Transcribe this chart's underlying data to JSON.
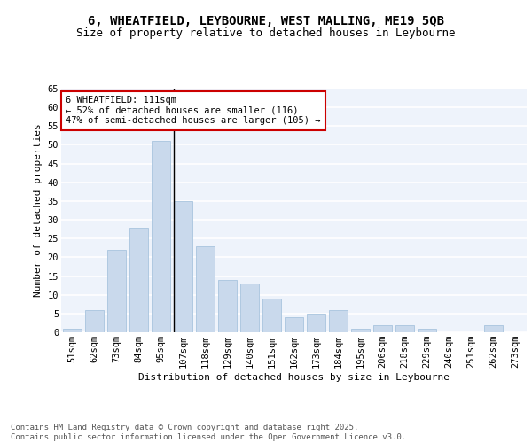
{
  "title1": "6, WHEATFIELD, LEYBOURNE, WEST MALLING, ME19 5QB",
  "title2": "Size of property relative to detached houses in Leybourne",
  "xlabel": "Distribution of detached houses by size in Leybourne",
  "ylabel": "Number of detached properties",
  "categories": [
    "51sqm",
    "62sqm",
    "73sqm",
    "84sqm",
    "95sqm",
    "107sqm",
    "118sqm",
    "129sqm",
    "140sqm",
    "151sqm",
    "162sqm",
    "173sqm",
    "184sqm",
    "195sqm",
    "206sqm",
    "218sqm",
    "229sqm",
    "240sqm",
    "251sqm",
    "262sqm",
    "273sqm"
  ],
  "values": [
    1,
    6,
    22,
    28,
    51,
    35,
    23,
    14,
    13,
    9,
    4,
    5,
    6,
    1,
    2,
    2,
    1,
    0,
    0,
    2,
    0
  ],
  "bar_color": "#c9d9ec",
  "bar_edge_color": "#a8c4de",
  "highlight_index": 5,
  "highlight_line_color": "#000000",
  "annotation_text": "6 WHEATFIELD: 111sqm\n← 52% of detached houses are smaller (116)\n47% of semi-detached houses are larger (105) →",
  "annotation_box_color": "#ffffff",
  "annotation_box_edge_color": "#cc0000",
  "ylim": [
    0,
    65
  ],
  "yticks": [
    0,
    5,
    10,
    15,
    20,
    25,
    30,
    35,
    40,
    45,
    50,
    55,
    60,
    65
  ],
  "background_color": "#ffffff",
  "plot_background_color": "#eef3fb",
  "grid_color": "#ffffff",
  "footer": "Contains HM Land Registry data © Crown copyright and database right 2025.\nContains public sector information licensed under the Open Government Licence v3.0.",
  "title_fontsize": 10,
  "subtitle_fontsize": 9,
  "axis_label_fontsize": 8,
  "tick_fontsize": 7.5,
  "annotation_fontsize": 7.5,
  "footer_fontsize": 6.5
}
